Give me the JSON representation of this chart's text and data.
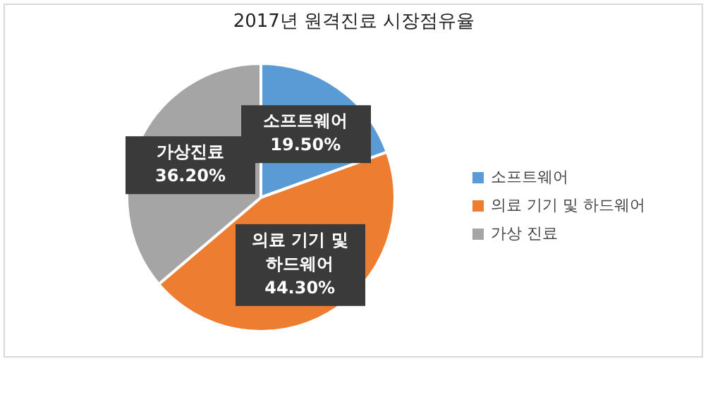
{
  "chart_data": {
    "type": "pie",
    "title": "2017년 원격진료 시장점유율",
    "categories": [
      "소프트웨어",
      "의료 기기 및 하드웨어",
      "가상 진료"
    ],
    "values": [
      19.5,
      44.3,
      36.2
    ],
    "colors": [
      "#5b9bd5",
      "#ed7d31",
      "#a5a5a5"
    ],
    "value_labels": [
      "소프트웨어 19.50%",
      "의료 기기 및 하드웨어 44.30%",
      "가상진료 36.20%"
    ],
    "legend": "right"
  }
}
